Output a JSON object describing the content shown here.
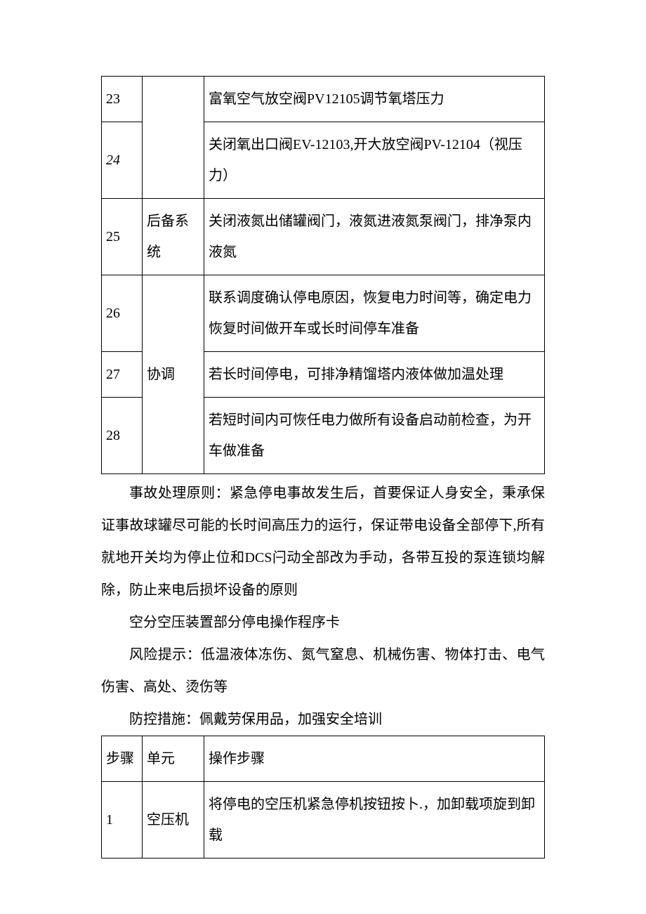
{
  "table1": {
    "rows": [
      {
        "step": "23",
        "unit": "",
        "op": "富氧空气放空阀PV12105调节氧塔压力",
        "italicStep": false
      },
      {
        "step": "24",
        "unit": "",
        "op": "关闭氧出口阀EV-12103,开大放空阀PV-12104（视压力）",
        "italicStep": true
      },
      {
        "step": "25",
        "unit": "后备系统",
        "op": "关闭液氮出储罐阀门，液氮进液氮泵阀门，排净泵内液氮",
        "italicStep": false
      },
      {
        "step": "26",
        "unit": "",
        "op": "联系调度确认停电原因，恢复电力时间等，确定电力恢复时间做开车或长时间停车准备",
        "italicStep": false
      },
      {
        "step": "27",
        "unit": "协调",
        "op": "若长时间停电，可排净精馏塔内液体做加温处理",
        "italicStep": false
      },
      {
        "step": "28",
        "unit": "",
        "op": "若短时间内可恢任电力做所有设备启动前检查，为开车做准备",
        "italicStep": false
      }
    ],
    "merge23_24_unit": true,
    "merge26_28_unit": true
  },
  "paragraphs": [
    "事故处理原则：紧急停电事故发生后，首要保证人身安全，秉承保证事故球罐尽可能的长时间高压力的运行，保证带电设备全部停下,所有就地开关均为停止位和DCS闩动全部改为手动，各带互投的泵连锁均解除，防止来电后损坏设备的原则",
    "空分空压装置部分停电操作程序卡",
    "风险提示：低温液体冻伤、氮气窒息、机械伤害、物体打击、电气伤害、高处、烫伤等",
    "防控措施：佩戴劳保用品，加强安全培训"
  ],
  "table2": {
    "header": {
      "step": "步骤",
      "unit": "单元",
      "op": "操作步骤"
    },
    "rows": [
      {
        "step": "1",
        "unit": "空压机",
        "op": "将停电的空压机紧急停机按钮按卜.，加卸载项旋到卸载"
      }
    ]
  }
}
